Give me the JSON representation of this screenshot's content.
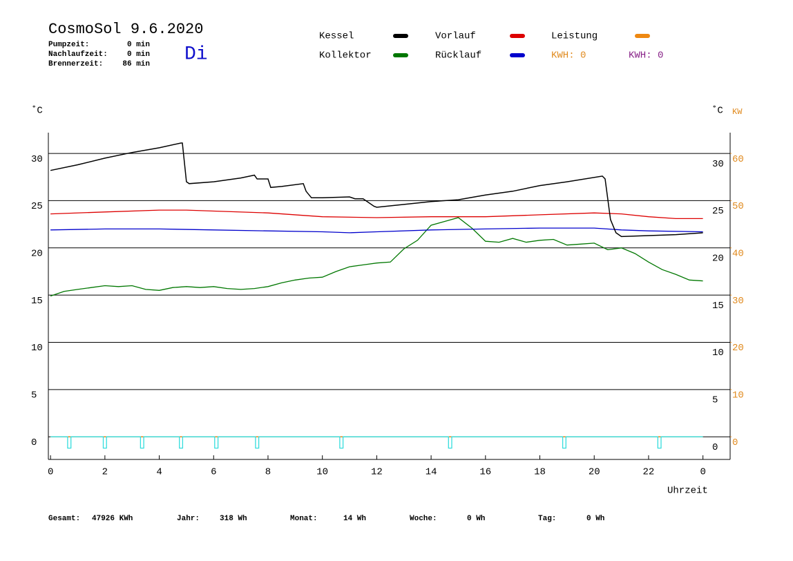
{
  "header": {
    "title": "CosmoSol 9.6.2020",
    "day": "Di",
    "info": [
      {
        "label": "Pumpzeit:",
        "value": "0 min"
      },
      {
        "label": "Nachlaufzeit:",
        "value": "0 min"
      },
      {
        "label": "Brennerzeit:",
        "value": "86 min"
      }
    ],
    "kwh_labels": [
      {
        "text": "KWH: 0",
        "color": "#e08a1e"
      },
      {
        "text": "KWH: 0",
        "color": "#882288"
      }
    ]
  },
  "footer": [
    {
      "label": "Gesamt:",
      "value": "47926 KWh"
    },
    {
      "label": "Jahr:",
      "value": "318 Wh"
    },
    {
      "label": "Monat:",
      "value": "14 Wh"
    },
    {
      "label": "Woche:",
      "value": "0 Wh"
    },
    {
      "label": "Tag:",
      "value": "0 Wh"
    }
  ],
  "chart_data": {
    "type": "line",
    "y_label": "˚C",
    "y2_label_c": "˚C",
    "y2_label": "KW",
    "x_label": "Uhrzeit",
    "xlim": [
      -0.08,
      25
    ],
    "xticks": [
      0,
      2,
      4,
      6,
      8,
      10,
      12,
      14,
      16,
      18,
      20,
      22,
      {
        "value": 24,
        "label": "0"
      }
    ],
    "ylim": [
      -2.4,
      32.2
    ],
    "yticks": [
      0,
      5,
      10,
      15,
      20,
      25,
      30
    ],
    "y2lim": [
      -4.8,
      64.4
    ],
    "y2ticks": [
      0,
      10,
      20,
      30,
      40,
      50,
      60
    ],
    "y2color": "#e08a1e",
    "grid": true,
    "series": [
      {
        "name": "Leistung",
        "color": "#ee8811",
        "x": [
          0,
          24
        ],
        "values": [
          0,
          0
        ]
      },
      {
        "color": "#33dddd",
        "x": [
          0,
          0.63,
          0.63,
          0.75,
          0.75,
          1.94,
          1.94,
          2.06,
          2.06,
          3.31,
          3.31,
          3.43,
          3.43,
          4.74,
          4.74,
          4.86,
          4.86,
          6.04,
          6.04,
          6.16,
          6.16,
          7.54,
          7.54,
          7.66,
          7.66,
          10.64,
          10.64,
          10.76,
          10.76,
          14.64,
          14.64,
          14.76,
          14.76,
          18.84,
          18.84,
          18.96,
          18.96,
          22.34,
          22.34,
          22.46,
          22.46,
          24
        ],
        "values": [
          0,
          0,
          -1.2,
          -1.2,
          0,
          0,
          -1.2,
          -1.2,
          0,
          0,
          -1.2,
          -1.2,
          0,
          0,
          -1.2,
          -1.2,
          0,
          0,
          -1.2,
          -1.2,
          0,
          0,
          -1.2,
          -1.2,
          0,
          0,
          -1.2,
          -1.2,
          0,
          0,
          -1.2,
          -1.2,
          0,
          0,
          -1.2,
          -1.2,
          0,
          0,
          -1.2,
          -1.2,
          0,
          0
        ]
      },
      {
        "name": "Kollektor",
        "color": "#007700",
        "x": [
          0,
          0.5,
          1,
          1.5,
          2,
          2.5,
          3,
          3.5,
          4,
          4.5,
          5,
          5.5,
          6,
          6.5,
          7,
          7.5,
          8,
          8.5,
          9,
          9.5,
          10,
          10.5,
          11,
          11.5,
          12,
          12.5,
          13,
          13.5,
          14,
          14.5,
          15,
          15.5,
          16,
          16.5,
          17,
          17.5,
          18,
          18.5,
          19,
          19.5,
          20,
          20.5,
          21,
          21.5,
          22,
          22.5,
          23,
          23.5,
          24
        ],
        "values": [
          14.9,
          15.4,
          15.6,
          15.8,
          16.0,
          15.9,
          16.0,
          15.6,
          15.5,
          15.8,
          15.9,
          15.8,
          15.9,
          15.7,
          15.6,
          15.7,
          15.9,
          16.3,
          16.6,
          16.8,
          16.9,
          17.5,
          18.0,
          18.2,
          18.4,
          18.5,
          19.9,
          20.8,
          22.4,
          22.8,
          23.2,
          22.1,
          20.7,
          20.6,
          21.0,
          20.6,
          20.8,
          20.9,
          20.3,
          20.4,
          20.5,
          19.8,
          20.0,
          19.4,
          18.5,
          17.7,
          17.2,
          16.6,
          16.5
        ]
      },
      {
        "name": "Rücklauf",
        "color": "#0000cc",
        "x": [
          0,
          2,
          4,
          6,
          8,
          10,
          11,
          12,
          14,
          16,
          18,
          20,
          21,
          22,
          24
        ],
        "values": [
          21.9,
          22.0,
          22.0,
          21.9,
          21.8,
          21.7,
          21.6,
          21.7,
          21.9,
          22.0,
          22.1,
          22.1,
          21.9,
          21.8,
          21.7
        ]
      },
      {
        "name": "Vorlauf",
        "color": "#dd0000",
        "x": [
          0,
          2,
          4,
          5,
          6,
          8,
          10,
          12,
          14,
          16,
          18,
          20,
          21,
          22,
          23,
          24
        ],
        "values": [
          23.6,
          23.8,
          24.0,
          24.0,
          23.9,
          23.7,
          23.3,
          23.2,
          23.3,
          23.3,
          23.5,
          23.7,
          23.6,
          23.3,
          23.1,
          23.1
        ]
      },
      {
        "name": "Kessel",
        "color": "#000000",
        "x": [
          0,
          1,
          2,
          3,
          4,
          4.8,
          4.85,
          5.0,
          5.1,
          6,
          7,
          7.5,
          7.6,
          8.0,
          8.1,
          8.5,
          9.3,
          9.4,
          9.6,
          10,
          11,
          11.2,
          11.5,
          11.9,
          12,
          13,
          14,
          15,
          16,
          17,
          18,
          19,
          20.3,
          20.4,
          20.6,
          20.8,
          21,
          22,
          23,
          24
        ],
        "values": [
          28.2,
          28.8,
          29.5,
          30.1,
          30.6,
          31.1,
          31.1,
          27.0,
          26.8,
          27.0,
          27.4,
          27.7,
          27.3,
          27.3,
          26.4,
          26.5,
          26.8,
          26.0,
          25.3,
          25.3,
          25.4,
          25.2,
          25.2,
          24.4,
          24.3,
          24.6,
          24.9,
          25.1,
          25.6,
          26.0,
          26.6,
          27.0,
          27.6,
          27.3,
          23.0,
          21.6,
          21.2,
          21.3,
          21.4,
          21.6
        ]
      }
    ]
  }
}
